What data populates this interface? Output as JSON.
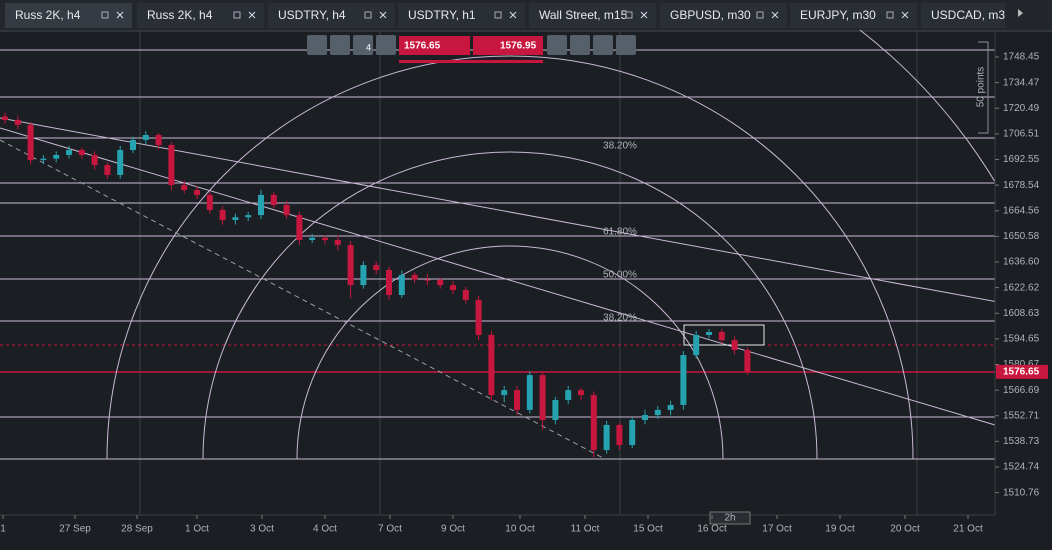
{
  "tabs": [
    "Russ 2K, h4",
    "Russ 2K, h4",
    "USDTRY, h4",
    "USDTRY, h1",
    "Wall Street, m15",
    "GBPUSD, m30",
    "EURJPY, m30",
    "USDCAD, m30"
  ],
  "toolbar": {
    "timeframe_badge": "4",
    "sell_price": "1576.65",
    "buy_price": "1576.95"
  },
  "chart_data": {
    "type": "candlestick",
    "candles": [
      [
        1716,
        1718,
        1712,
        1714.1
      ],
      [
        1714.1,
        1716,
        1709,
        1711.4
      ],
      [
        1711.4,
        1713,
        1690,
        1692.2
      ],
      [
        1692.2,
        1695,
        1690,
        1693
      ],
      [
        1693,
        1697,
        1691,
        1695
      ],
      [
        1695,
        1700,
        1693,
        1697.7
      ],
      [
        1697.7,
        1699,
        1693,
        1695
      ],
      [
        1695,
        1697,
        1687,
        1689.5
      ],
      [
        1689.5,
        1691,
        1682,
        1684.1
      ],
      [
        1684.1,
        1700,
        1682,
        1697.7
      ],
      [
        1697.7,
        1705,
        1696,
        1703.2
      ],
      [
        1703.2,
        1708,
        1701,
        1705.9
      ],
      [
        1705.9,
        1707,
        1698,
        1700.4
      ],
      [
        1700.4,
        1702,
        1676,
        1678.6
      ],
      [
        1678.6,
        1681,
        1674,
        1675.9
      ],
      [
        1675.9,
        1678,
        1671,
        1673.2
      ],
      [
        1673.2,
        1675,
        1663,
        1665
      ],
      [
        1665,
        1667,
        1657,
        1659.5
      ],
      [
        1659.5,
        1663,
        1657,
        1661
      ],
      [
        1661,
        1664,
        1659,
        1662.2
      ],
      [
        1662.2,
        1676,
        1660,
        1673.2
      ],
      [
        1673.2,
        1675,
        1666,
        1667.7
      ],
      [
        1667.7,
        1670,
        1660,
        1662.2
      ],
      [
        1662.2,
        1664,
        1646,
        1648.6
      ],
      [
        1648.6,
        1652,
        1647,
        1649.8
      ],
      [
        1649.8,
        1651,
        1646,
        1648.6
      ],
      [
        1648.6,
        1651,
        1643,
        1645.9
      ],
      [
        1645.9,
        1648,
        1617,
        1624
      ],
      [
        1624,
        1637,
        1622,
        1634.9
      ],
      [
        1634.9,
        1637,
        1630,
        1632.2
      ],
      [
        1632.2,
        1634,
        1616,
        1618.6
      ],
      [
        1618.6,
        1632,
        1617,
        1629.5
      ],
      [
        1629.5,
        1631,
        1625,
        1627
      ],
      [
        1627,
        1630,
        1624,
        1626.8
      ],
      [
        1626.8,
        1628,
        1622,
        1624
      ],
      [
        1624,
        1626,
        1619,
        1621.3
      ],
      [
        1621.3,
        1623,
        1614,
        1615.9
      ],
      [
        1615.9,
        1618,
        1594,
        1596.8
      ],
      [
        1596.8,
        1599,
        1561,
        1564
      ],
      [
        1564,
        1569,
        1560,
        1566.7
      ],
      [
        1566.7,
        1569,
        1553,
        1555.9
      ],
      [
        1555.9,
        1577,
        1554,
        1574.9
      ],
      [
        1574.9,
        1577,
        1545,
        1550.4
      ],
      [
        1550.4,
        1563,
        1548,
        1561.3
      ],
      [
        1561.3,
        1569,
        1559,
        1566.7
      ],
      [
        1566.7,
        1568,
        1561,
        1564
      ],
      [
        1564,
        1566,
        1530,
        1534
      ],
      [
        1534,
        1550,
        1532,
        1547.7
      ],
      [
        1547.7,
        1549,
        1534,
        1536.7
      ],
      [
        1536.7,
        1552,
        1535,
        1550.4
      ],
      [
        1550.4,
        1556,
        1548,
        1553.1
      ],
      [
        1553.1,
        1558,
        1551,
        1555.9
      ],
      [
        1555.9,
        1561,
        1553,
        1558.6
      ],
      [
        1558.6,
        1588,
        1556,
        1585.8
      ],
      [
        1585.8,
        1599,
        1584,
        1596.8
      ],
      [
        1596.8,
        1600,
        1595,
        1598.4
      ],
      [
        1598.4,
        1600,
        1592,
        1594
      ],
      [
        1594,
        1596,
        1586,
        1588.6
      ],
      [
        1588.6,
        1590,
        1575,
        1576.65
      ]
    ],
    "up_color": "#26a3b0",
    "down_color": "#c8173f",
    "ylim": [
      1498.56,
      1763.18
    ],
    "yticks": [
      1748.45,
      1734.47,
      1720.49,
      1706.51,
      1692.55,
      1678.54,
      1664.56,
      1650.58,
      {
        "value": 1636.6,
        "label": "1636.60"
      },
      1622.62,
      1608.63,
      1594.65,
      1580.67,
      1566.69,
      1552.71,
      1538.73,
      1524.74,
      1510.76
    ],
    "xtick_labels": [
      "1",
      "27 Sep",
      "28 Sep",
      "1 Oct",
      "3 Oct",
      "4 Oct",
      "7 Oct",
      "9 Oct",
      "10 Oct",
      "11 Oct",
      "15 Oct",
      "16 Oct",
      "17 Oct",
      "19 Oct",
      "20 Oct",
      "21 Oct"
    ],
    "fib_labels": [
      "38.20%",
      "61.80%",
      "50.00%",
      "38.20%"
    ],
    "scale_label": "50 points",
    "last_price": 1576.65,
    "period_label": "2h"
  }
}
